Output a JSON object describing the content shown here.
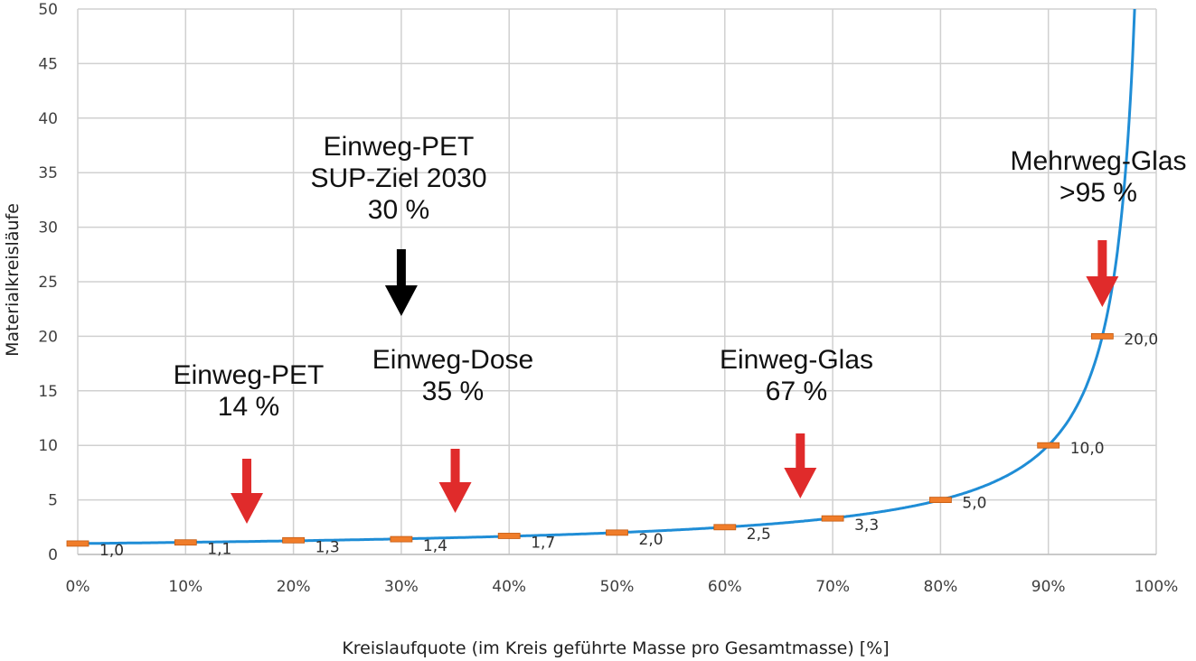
{
  "chart_data": {
    "type": "line",
    "xlabel": "Kreislaufquote (im Kreis geführte Masse pro Gesamtmasse) [%]",
    "ylabel": "Materialkreisläufe",
    "xlim": [
      0,
      100
    ],
    "ylim": [
      0,
      50
    ],
    "x_ticks": [
      "0%",
      "10%",
      "20%",
      "30%",
      "40%",
      "50%",
      "60%",
      "70%",
      "80%",
      "90%",
      "100%"
    ],
    "y_ticks": [
      "0",
      "5",
      "10",
      "15",
      "20",
      "25",
      "30",
      "35",
      "40",
      "45",
      "50"
    ],
    "grid": true,
    "line_color": "#1f8dd6",
    "marker_color": "#f07d2a",
    "curve": "1 / (1 - x/100)",
    "series": [
      {
        "x": [
          0,
          10,
          20,
          30,
          40,
          50,
          60,
          70,
          80,
          90,
          95
        ],
        "values": [
          1.0,
          1.1,
          1.3,
          1.4,
          1.7,
          2.0,
          2.5,
          3.3,
          5.0,
          10.0,
          20.0
        ],
        "labels": [
          "1,0",
          "1,1",
          "1,3",
          "1,4",
          "1,7",
          "2,0",
          "2,5",
          "3,3",
          "5,0",
          "10,0",
          "20,0"
        ]
      }
    ],
    "annotations": [
      {
        "lines": [
          "Einweg-PET",
          "14 %"
        ],
        "x": 14,
        "arrow_color": "#e02b2b"
      },
      {
        "lines": [
          "Einweg-PET",
          "SUP-Ziel 2030",
          "30 %"
        ],
        "x": 30,
        "arrow_color": "#000000"
      },
      {
        "lines": [
          "Einweg-Dose",
          "35 %"
        ],
        "x": 35,
        "arrow_color": "#e02b2b"
      },
      {
        "lines": [
          "Einweg-Glas",
          "67 %"
        ],
        "x": 67,
        "arrow_color": "#e02b2b"
      },
      {
        "lines": [
          "Mehrweg-Glas",
          ">95 %"
        ],
        "x": 95,
        "arrow_color": "#e02b2b"
      }
    ]
  }
}
